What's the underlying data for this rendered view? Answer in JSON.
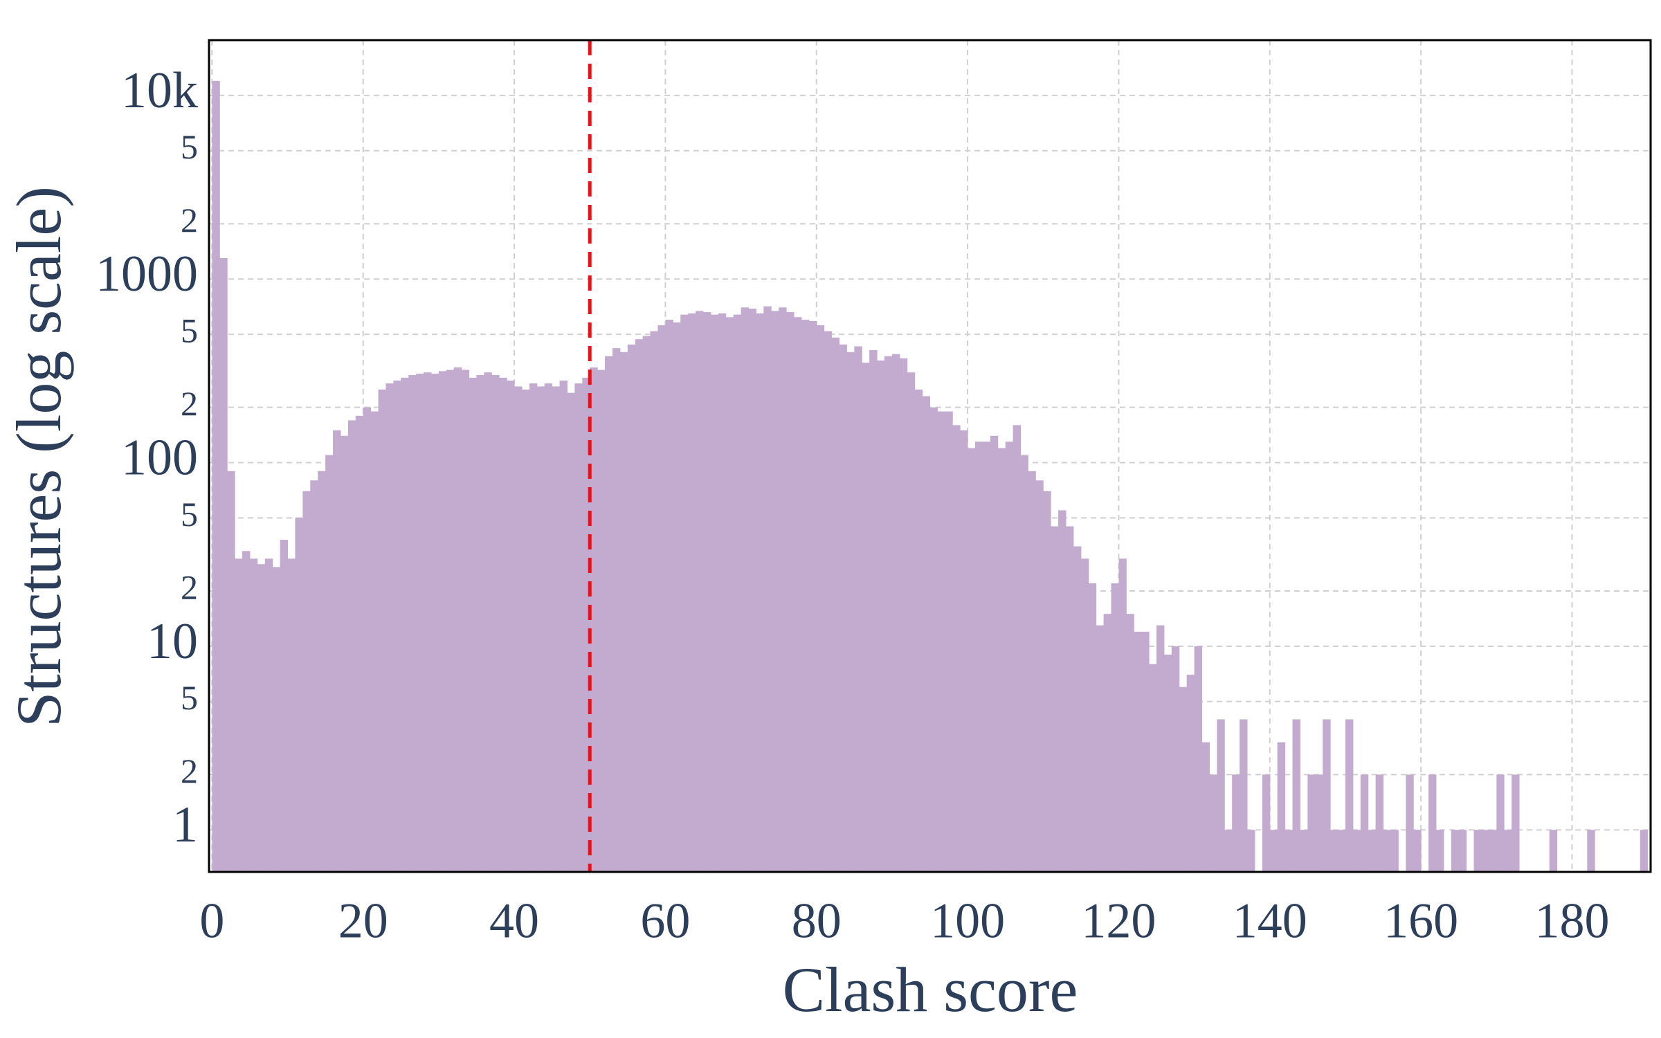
{
  "chart_data": {
    "type": "histogram",
    "xlabel": "Clash score",
    "ylabel": "Structures (log scale)",
    "color": "#c3abcf",
    "log_y": true,
    "grid": true,
    "xlim": [
      -0.4,
      190.4
    ],
    "ylim": [
      0.59,
      20000
    ],
    "xticks": [
      0,
      20,
      40,
      60,
      80,
      100,
      120,
      140,
      160,
      180
    ],
    "yticks": [
      1,
      2,
      5,
      10,
      {
        "value": 20,
        "label": "2"
      },
      {
        "value": 50,
        "label": "5"
      },
      100,
      {
        "value": 200,
        "label": "2"
      },
      {
        "value": 500,
        "label": "5"
      },
      1000,
      {
        "value": 2000,
        "label": "2"
      },
      {
        "value": 5000,
        "label": "5"
      },
      {
        "value": 10000,
        "label": "10k"
      }
    ],
    "vline": {
      "value": 50,
      "color": "#e8121a"
    },
    "bins": [
      0,
      1,
      2,
      3,
      4,
      5,
      6,
      7,
      8,
      9,
      10,
      11,
      12,
      13,
      14,
      15,
      16,
      17,
      18,
      19,
      20,
      21,
      22,
      23,
      24,
      25,
      26,
      27,
      28,
      29,
      30,
      31,
      32,
      33,
      34,
      35,
      36,
      37,
      38,
      39,
      40,
      41,
      42,
      43,
      44,
      45,
      46,
      47,
      48,
      49,
      50,
      51,
      52,
      53,
      54,
      55,
      56,
      57,
      58,
      59,
      60,
      61,
      62,
      63,
      64,
      65,
      66,
      67,
      68,
      69,
      70,
      71,
      72,
      73,
      74,
      75,
      76,
      77,
      78,
      79,
      80,
      81,
      82,
      83,
      84,
      85,
      86,
      87,
      88,
      89,
      90,
      91,
      92,
      93,
      94,
      95,
      96,
      97,
      98,
      99,
      100,
      101,
      102,
      103,
      104,
      105,
      106,
      107,
      108,
      109,
      110,
      111,
      112,
      113,
      114,
      115,
      116,
      117,
      118,
      119,
      120,
      121,
      122,
      123,
      124,
      125,
      126,
      127,
      128,
      129,
      130,
      131,
      132,
      133,
      134,
      135,
      136,
      137,
      138,
      139,
      140,
      141,
      142,
      143,
      144,
      145,
      146,
      147,
      148,
      149,
      150,
      151,
      152,
      153,
      154,
      155,
      156,
      157,
      158,
      159,
      160,
      161,
      162,
      163,
      164,
      165,
      166,
      167,
      168,
      169,
      170,
      171,
      172,
      173,
      174,
      175,
      176,
      177,
      178,
      179,
      180,
      181,
      182,
      183,
      184,
      185,
      186,
      187,
      188,
      189,
      190
    ],
    "counts": [
      12000,
      1300,
      90,
      30,
      33,
      30,
      28,
      30,
      27,
      38,
      30,
      50,
      70,
      80,
      90,
      110,
      150,
      140,
      170,
      180,
      200,
      190,
      250,
      270,
      280,
      290,
      300,
      305,
      310,
      305,
      315,
      320,
      330,
      320,
      290,
      300,
      310,
      300,
      290,
      280,
      260,
      250,
      270,
      260,
      270,
      260,
      280,
      240,
      270,
      290,
      330,
      320,
      380,
      420,
      400,
      440,
      470,
      490,
      520,
      560,
      600,
      580,
      640,
      650,
      670,
      660,
      640,
      650,
      620,
      640,
      700,
      690,
      650,
      710,
      670,
      700,
      660,
      620,
      600,
      590,
      560,
      520,
      480,
      440,
      400,
      430,
      350,
      410,
      360,
      380,
      390,
      370,
      310,
      250,
      230,
      200,
      190,
      190,
      160,
      150,
      120,
      130,
      130,
      140,
      120,
      130,
      160,
      110,
      90,
      80,
      70,
      45,
      55,
      45,
      35,
      30,
      22,
      13,
      15,
      22,
      30,
      15,
      12,
      12,
      8,
      13,
      9,
      10,
      6,
      7,
      10,
      3,
      2,
      4,
      1,
      2,
      4,
      1,
      0,
      2,
      1,
      3,
      1,
      4,
      1,
      2,
      2,
      4,
      1,
      1,
      4,
      1,
      2,
      1,
      2,
      1,
      1,
      0,
      2,
      1,
      0,
      2,
      1,
      0,
      1,
      1,
      0,
      1,
      1,
      1,
      2,
      1,
      2,
      0,
      0,
      0,
      0,
      1,
      0,
      0,
      0,
      0,
      1,
      0,
      0,
      0,
      0,
      0,
      0,
      1
    ]
  }
}
